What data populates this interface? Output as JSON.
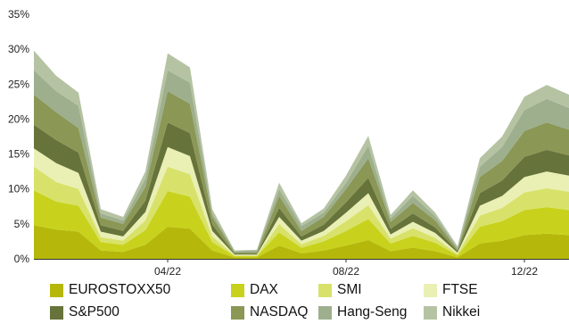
{
  "chart_data": {
    "type": "area",
    "stacked": true,
    "title": "",
    "xlabel": "",
    "ylabel": "",
    "ylim": [
      0,
      35
    ],
    "y_ticks": [
      "0%",
      "5%",
      "10%",
      "15%",
      "20%",
      "25%",
      "30%",
      "35%"
    ],
    "x_tick_labels": [
      "04/22",
      "08/22",
      "12/22"
    ],
    "x_range": [
      "2022-01",
      "2023-01"
    ],
    "grid": false,
    "legend_position": "bottom",
    "x": [
      "2022-01",
      "2022-01-15",
      "2022-02",
      "2022-02-15",
      "2022-03",
      "2022-03-15",
      "2022-04",
      "2022-04-15",
      "2022-05",
      "2022-05-15",
      "2022-06",
      "2022-06-15",
      "2022-07",
      "2022-07-15",
      "2022-08",
      "2022-08-15",
      "2022-09",
      "2022-09-15",
      "2022-10",
      "2022-10-15",
      "2022-11",
      "2022-11-15",
      "2022-12",
      "2022-12-15",
      "2023-01"
    ],
    "series": [
      {
        "name": "EUROSTOXX50",
        "color": "#b5b80a",
        "values": [
          4.8,
          4.2,
          3.9,
          1.2,
          1.0,
          2.0,
          4.6,
          4.3,
          1.2,
          0.2,
          0.2,
          1.9,
          0.8,
          1.2,
          1.9,
          2.7,
          1.1,
          1.6,
          1.1,
          0.2,
          2.2,
          2.6,
          3.4,
          3.6,
          3.4
        ]
      },
      {
        "name": "DAX",
        "color": "#c8d21c",
        "values": [
          5.0,
          4.0,
          3.7,
          1.2,
          1.0,
          2.1,
          5.1,
          4.6,
          1.2,
          0.2,
          0.2,
          1.9,
          0.8,
          1.3,
          2.1,
          3.0,
          1.1,
          1.7,
          1.2,
          0.3,
          2.4,
          2.8,
          3.6,
          3.8,
          3.6
        ]
      },
      {
        "name": "SMI",
        "color": "#d8e26a",
        "values": [
          3.4,
          2.8,
          2.4,
          0.7,
          0.6,
          1.4,
          3.5,
          3.2,
          0.8,
          0.1,
          0.1,
          1.2,
          0.5,
          0.8,
          1.4,
          2.0,
          0.7,
          1.1,
          0.7,
          0.2,
          1.6,
          1.9,
          2.5,
          2.7,
          2.6
        ]
      },
      {
        "name": "FTSE",
        "color": "#eaf0b4",
        "values": [
          2.6,
          2.7,
          2.3,
          0.8,
          0.6,
          1.2,
          2.8,
          2.6,
          0.8,
          0.1,
          0.1,
          1.0,
          0.5,
          0.7,
          1.2,
          1.7,
          0.6,
          0.9,
          0.7,
          0.2,
          1.4,
          1.7,
          2.2,
          2.4,
          2.3
        ]
      },
      {
        "name": "S&P500",
        "color": "#66733a",
        "values": [
          3.4,
          3.3,
          2.9,
          0.9,
          0.8,
          1.6,
          3.5,
          3.3,
          0.9,
          0.1,
          0.1,
          1.3,
          0.6,
          0.9,
          1.5,
          2.2,
          0.8,
          1.2,
          0.8,
          0.2,
          1.8,
          2.2,
          2.9,
          3.1,
          2.9
        ]
      },
      {
        "name": "NASDAQ",
        "color": "#8b9755",
        "values": [
          4.3,
          4.0,
          3.5,
          1.1,
          1.0,
          2.0,
          4.5,
          4.2,
          1.1,
          0.2,
          0.2,
          1.7,
          0.8,
          1.1,
          1.9,
          2.8,
          1.0,
          1.5,
          1.0,
          0.2,
          2.3,
          2.8,
          3.7,
          3.9,
          3.7
        ]
      },
      {
        "name": "Hang-Seng",
        "color": "#9eaf8e",
        "values": [
          3.5,
          3.0,
          3.2,
          0.6,
          0.5,
          1.2,
          3.0,
          3.0,
          0.5,
          0.2,
          0.3,
          1.0,
          0.7,
          0.6,
          0.9,
          1.8,
          0.5,
          1.0,
          0.6,
          0.3,
          1.5,
          2.0,
          3.0,
          3.4,
          3.1
        ]
      },
      {
        "name": "Nikkei",
        "color": "#b5c3a2",
        "values": [
          2.8,
          2.2,
          1.9,
          0.6,
          0.5,
          1.0,
          2.4,
          2.2,
          0.6,
          0.1,
          0.1,
          0.9,
          0.4,
          0.6,
          1.0,
          1.4,
          0.5,
          0.8,
          0.5,
          0.2,
          1.2,
          1.5,
          1.9,
          2.0,
          1.9
        ]
      }
    ]
  }
}
